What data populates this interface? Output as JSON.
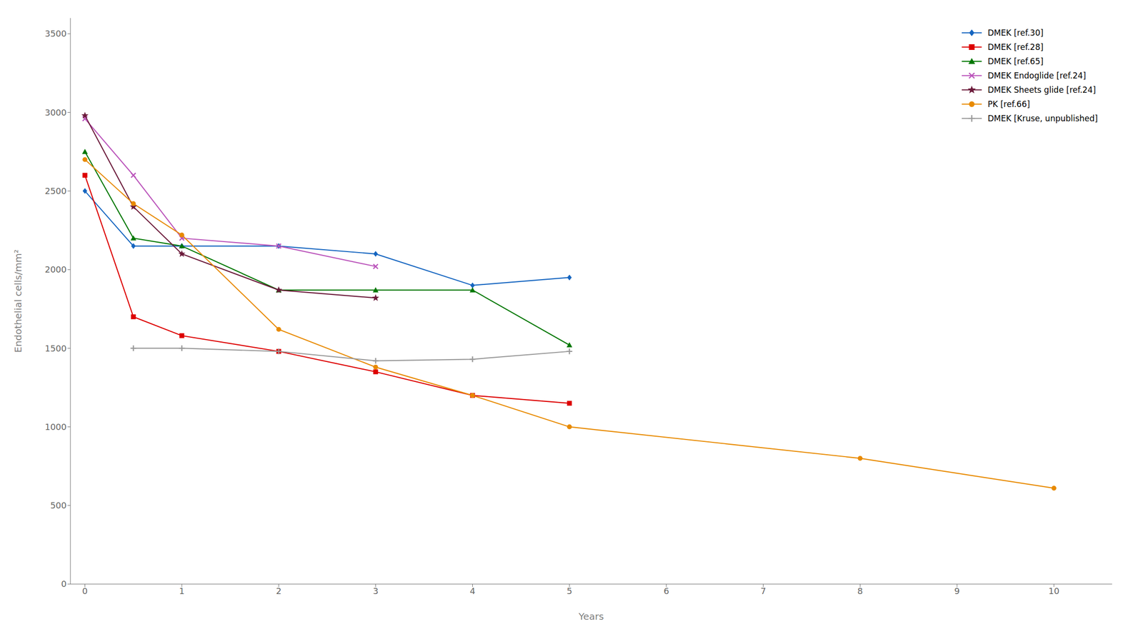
{
  "chart_data": {
    "type": "line",
    "xlabel": "Years",
    "ylabel": "Endothelial cells/mm²",
    "xlim": [
      -0.15,
      10.6
    ],
    "ylim": [
      0,
      3600
    ],
    "xticks": [
      0,
      1,
      2,
      3,
      4,
      5,
      6,
      7,
      8,
      9,
      10
    ],
    "yticks": [
      0,
      500,
      1000,
      1500,
      2000,
      2500,
      3000,
      3500
    ],
    "grid": false,
    "legend": "upper right",
    "series": [
      {
        "name": "DMEK [ref.30]",
        "color": "#1565C0",
        "marker": "diamond",
        "x": [
          0,
          0.5,
          1,
          2,
          3,
          4,
          5
        ],
        "values": [
          2500,
          2150,
          2150,
          2150,
          2100,
          1900,
          1950
        ]
      },
      {
        "name": "DMEK [ref.28]",
        "color": "#DD0000",
        "marker": "square",
        "x": [
          0,
          0.5,
          1,
          2,
          3,
          4,
          5
        ],
        "values": [
          2600,
          1700,
          1580,
          1480,
          1350,
          1200,
          1150
        ]
      },
      {
        "name": "DMEK [ref.65]",
        "color": "#007700",
        "marker": "triangle",
        "x": [
          0,
          0.5,
          1,
          2,
          3,
          4,
          5
        ],
        "values": [
          2750,
          2200,
          2150,
          1870,
          1870,
          1870,
          1520
        ]
      },
      {
        "name": "DMEK Endoglide [ref.24]",
        "color": "#BB55BB",
        "marker": "x",
        "x": [
          0,
          0.5,
          1,
          2,
          3
        ],
        "values": [
          2960,
          2600,
          2200,
          2150,
          2020
        ]
      },
      {
        "name": "DMEK Sheets glide [ref.24]",
        "color": "#6B1A3A",
        "marker": "star",
        "x": [
          0,
          0.5,
          1,
          2,
          3
        ],
        "values": [
          2980,
          2400,
          2100,
          1870,
          1820
        ]
      },
      {
        "name": "PK [ref.66]",
        "color": "#E88A00",
        "marker": "circle",
        "x": [
          0,
          0.5,
          1,
          2,
          3,
          4,
          5,
          8,
          10
        ],
        "values": [
          2700,
          2420,
          2220,
          1620,
          1380,
          1200,
          1000,
          800,
          610
        ]
      },
      {
        "name": "DMEK [Kruse, unpublished]",
        "color": "#999999",
        "marker": "plus",
        "x": [
          0.5,
          1,
          2,
          3,
          4,
          5
        ],
        "values": [
          1500,
          1500,
          1480,
          1420,
          1430,
          1480
        ]
      }
    ]
  }
}
